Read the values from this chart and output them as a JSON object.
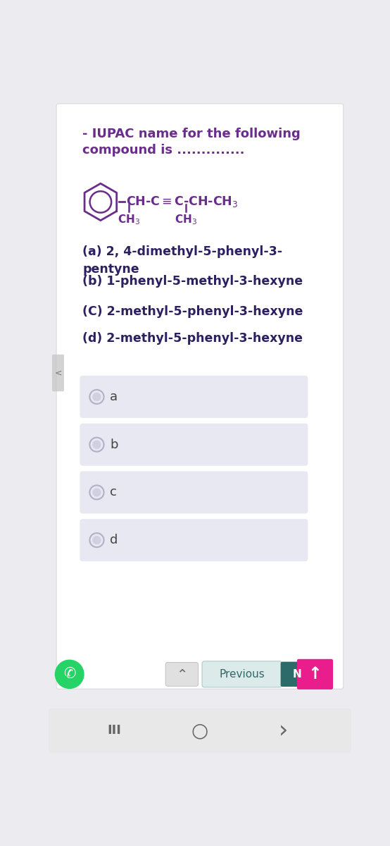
{
  "bg_color": "#ebebf0",
  "card_color": "#ffffff",
  "title_color": "#6b2d8b",
  "options_text_color": "#2d2060",
  "question_text_line1": "- IUPAC name for the following",
  "question_text_line2": "compound is ..............",
  "option_a": "(a) 2, 4-dimethyl-5-phenyl-3-\npentyne",
  "option_b": "(b) 1-phenyl-5-methyl-3-hexyne",
  "option_c": "(C) 2-methyl-5-phenyl-3-hexyne",
  "option_d": "(d) 2-methyl-5-phenyl-3-hexyne",
  "choice_labels": [
    "a",
    "b",
    "c",
    "d"
  ],
  "choice_box_color": "#e8e8f2",
  "choice_text_color": "#444444",
  "radio_outer_color": "#b0b0c8",
  "radio_inner_color": "#d0d0e0",
  "previous_btn_color": "#ddeaea",
  "next_btn_color": "#2d6b6b",
  "up_btn_color": "#e91e8c",
  "whatsapp_color": "#25d366",
  "nav_bar_color": "#e8e8e8",
  "chem_color": "#6b2d8b",
  "side_tab_color": "#c8c8c8"
}
